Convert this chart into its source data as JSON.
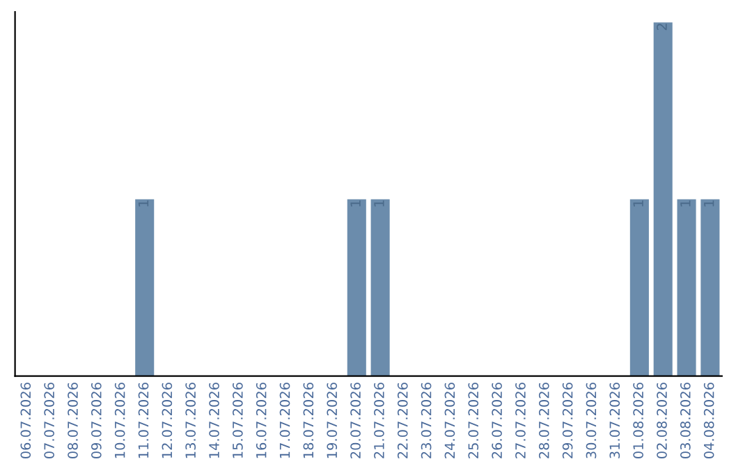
{
  "chart_data": {
    "type": "bar",
    "categories": [
      "06.07.2026",
      "07.07.2026",
      "08.07.2026",
      "09.07.2026",
      "10.07.2026",
      "11.07.2026",
      "12.07.2026",
      "13.07.2026",
      "14.07.2026",
      "15.07.2026",
      "16.07.2026",
      "17.07.2026",
      "18.07.2026",
      "19.07.2026",
      "20.07.2026",
      "21.07.2026",
      "22.07.2026",
      "23.07.2026",
      "24.07.2026",
      "25.07.2026",
      "26.07.2026",
      "27.07.2026",
      "28.07.2026",
      "29.07.2026",
      "30.07.2026",
      "31.07.2026",
      "01.08.2026",
      "02.08.2026",
      "03.08.2026",
      "04.08.2026"
    ],
    "values": [
      0,
      0,
      0,
      0,
      0,
      1,
      0,
      0,
      0,
      0,
      0,
      0,
      0,
      0,
      1,
      1,
      0,
      0,
      0,
      0,
      0,
      0,
      0,
      0,
      0,
      0,
      1,
      2,
      1,
      1
    ],
    "value_labels": [
      null,
      null,
      null,
      null,
      null,
      "1",
      null,
      null,
      null,
      null,
      null,
      null,
      null,
      null,
      "1",
      "1",
      null,
      null,
      null,
      null,
      null,
      null,
      null,
      null,
      null,
      null,
      "1",
      "2",
      "1",
      "1"
    ],
    "color": "#6b8cac",
    "tick_labels": "x",
    "grid": false,
    "legend": false
  }
}
